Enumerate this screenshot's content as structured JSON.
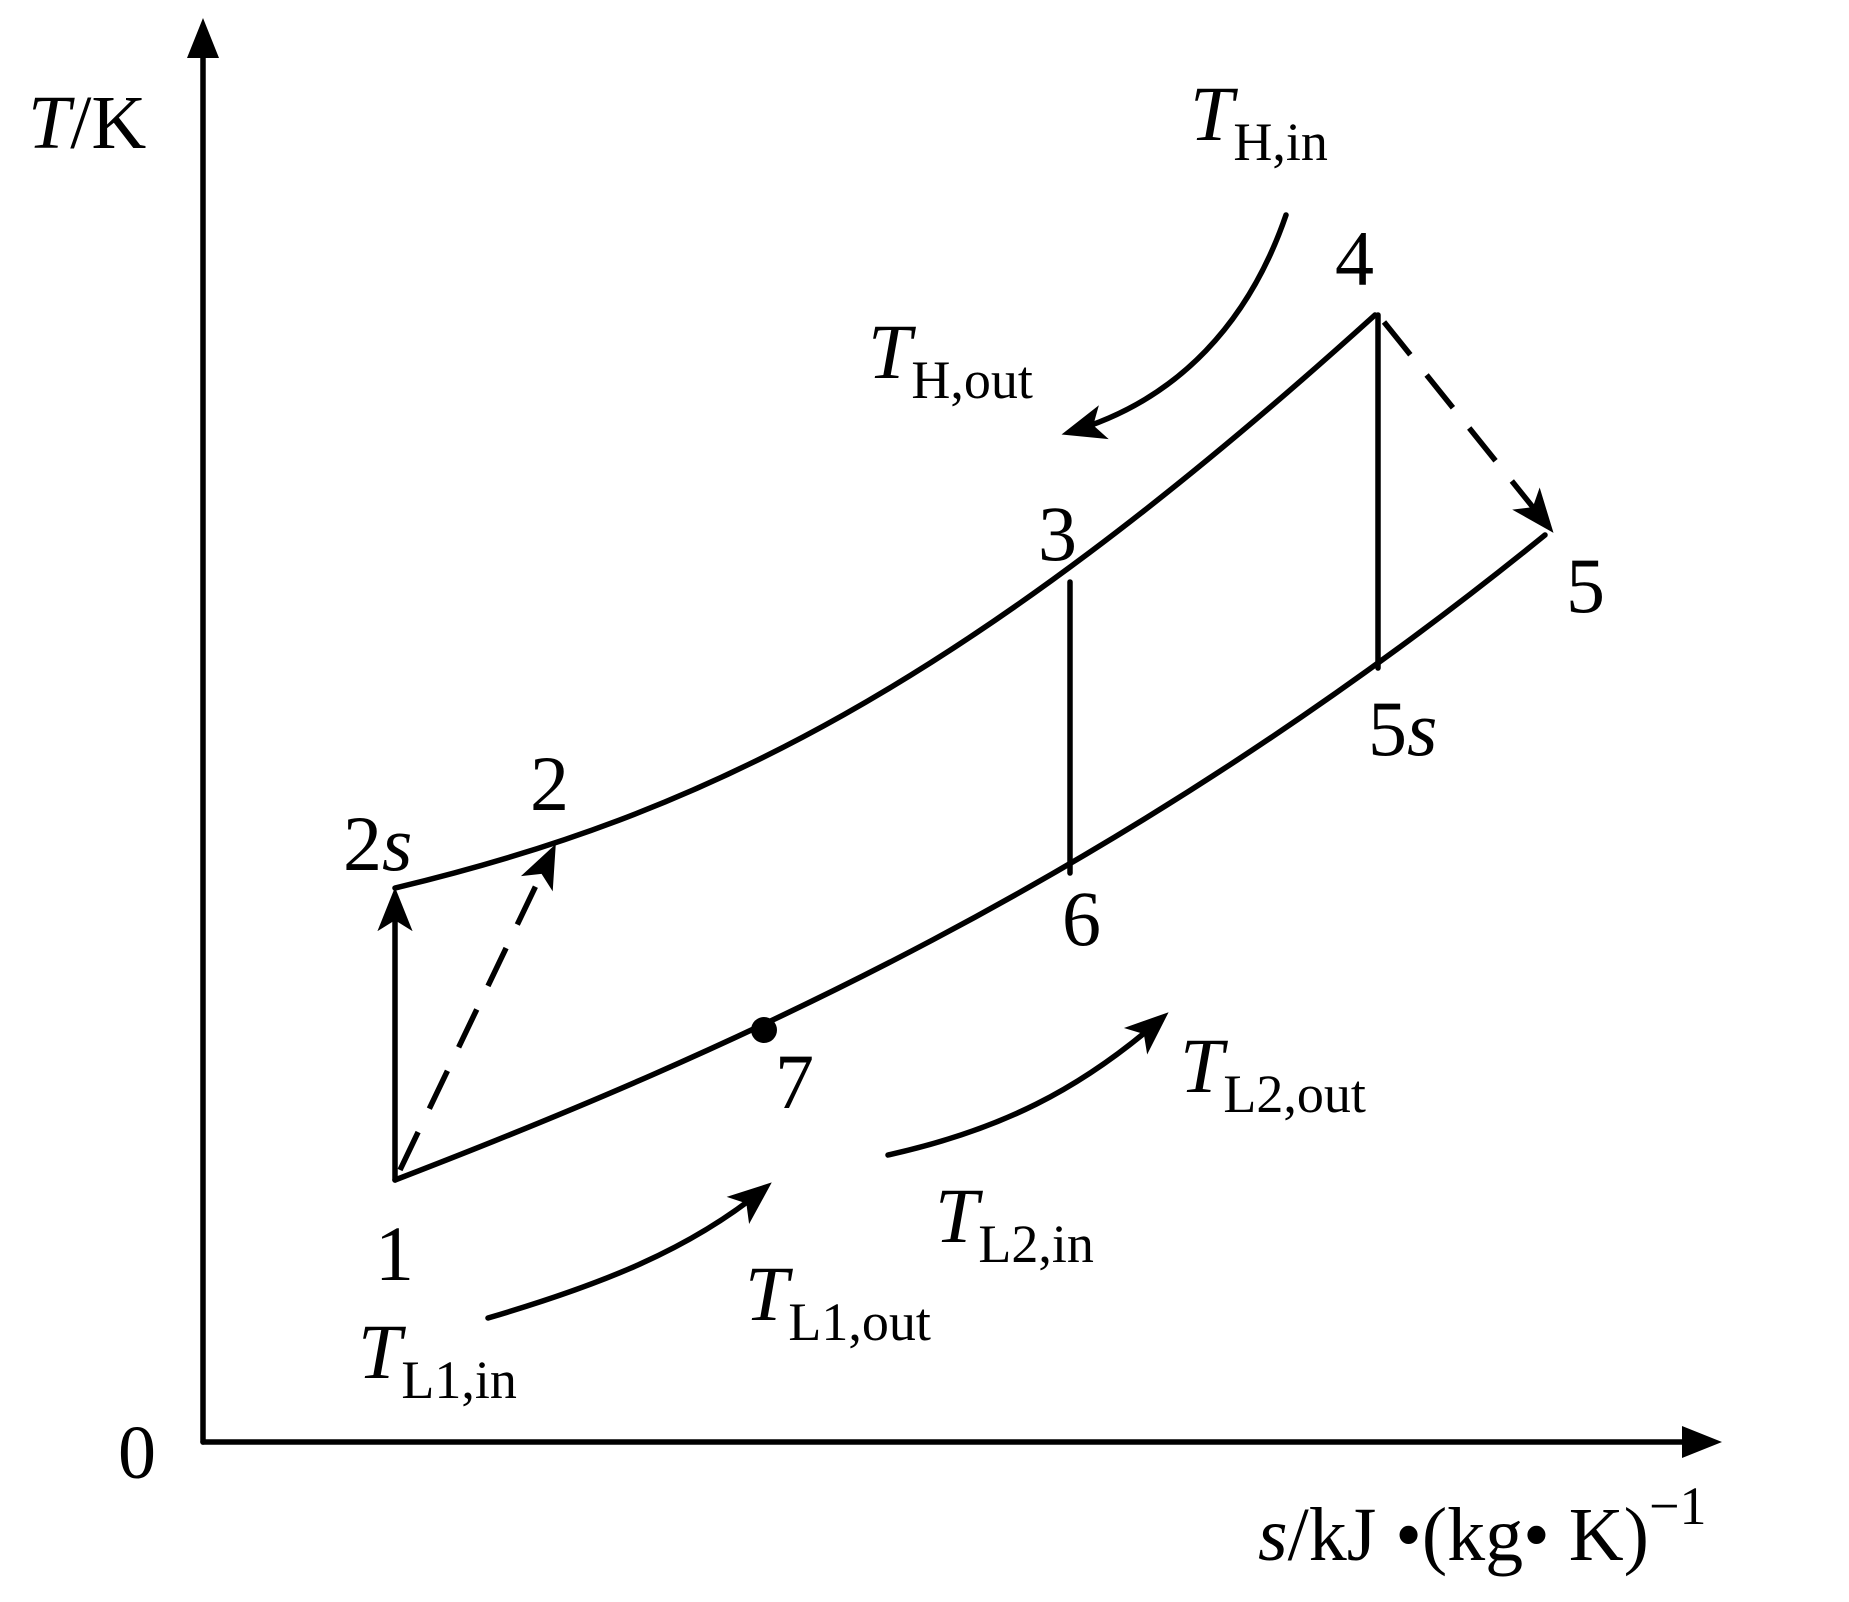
{
  "axes": {
    "y_label_var": "T",
    "y_label_unit": "/K",
    "x_label_var": "s",
    "x_label_unit": "/kJ •(kg• K)",
    "x_label_exp": "−1",
    "origin": "0"
  },
  "points": {
    "p1": "1",
    "p2": "2",
    "p2s_num": "2",
    "p2s_s": "s",
    "p3": "3",
    "p4": "4",
    "p5": "5",
    "p5s_num": "5",
    "p5s_s": "s",
    "p6": "6",
    "p7": "7"
  },
  "stream_labels": {
    "T_sym": "T",
    "H_in": "H,in",
    "H_out": "H,out",
    "L1_in": "L1,in",
    "L1_out": "L1,out",
    "L2_in": "L2,in",
    "L2_out": "L2,out"
  }
}
